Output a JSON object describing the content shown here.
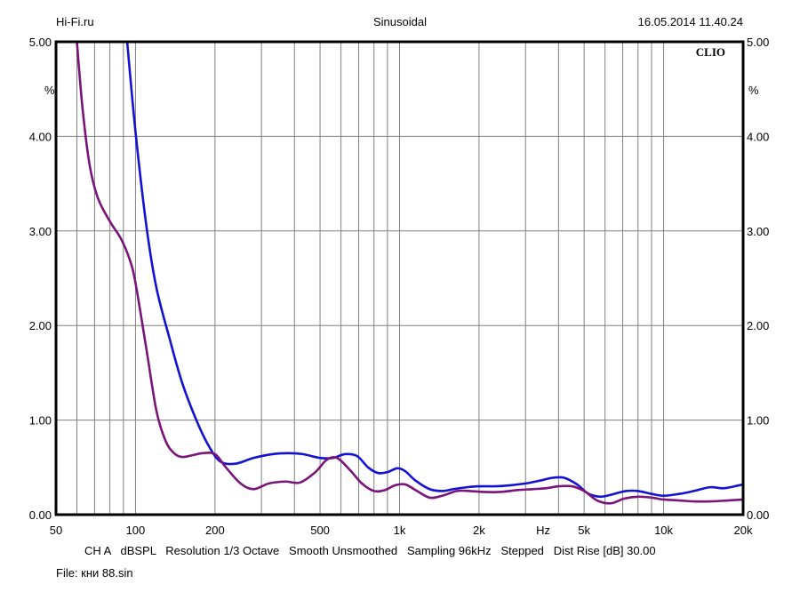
{
  "header": {
    "left": "Hi-Fi.ru",
    "center": "Sinusoidal",
    "right": "16.05.2014 11.40.24"
  },
  "brand": "CLIO",
  "footer": {
    "settings": "CH A   dBSPL   Resolution 1/3 Octave   Smooth Unsmoothed   Sampling 96kHz   Stepped   Dist Rise [dB] 30.00",
    "file": "File: кни 88.sin"
  },
  "colors": {
    "series_blue": "#1212d4",
    "series_purple": "#7a137a",
    "grid": "#808080",
    "frame": "#000000"
  },
  "chart_data": {
    "type": "line",
    "title": "Sinusoidal",
    "xlabel": "Hz",
    "ylabel": "%",
    "x_scale": "log",
    "xlim": [
      50,
      20000
    ],
    "ylim": [
      0,
      5
    ],
    "grid": true,
    "x_tick_labels": [
      {
        "value": 50,
        "label": "50"
      },
      {
        "value": 100,
        "label": "100"
      },
      {
        "value": 200,
        "label": "200"
      },
      {
        "value": 500,
        "label": "500"
      },
      {
        "value": 1000,
        "label": "1k"
      },
      {
        "value": 2000,
        "label": "2k"
      },
      {
        "value": 3500,
        "label": "Hz"
      },
      {
        "value": 5000,
        "label": "5k"
      },
      {
        "value": 10000,
        "label": "10k"
      },
      {
        "value": 20000,
        "label": "20k"
      }
    ],
    "y_tick_labels_left": [
      "0.00",
      "1.00",
      "2.00",
      "3.00",
      "4.00",
      "5.00"
    ],
    "y_tick_labels_right": [
      "0.00",
      "1.00",
      "2.00",
      "3.00",
      "4.00",
      "5.00"
    ],
    "y_ticks": [
      0,
      1,
      2,
      3,
      4,
      5
    ],
    "unit_left": "%",
    "unit_right": "%",
    "series": [
      {
        "color": "#1212d4",
        "x": [
          93,
          100,
          110,
          120,
          135,
          150,
          170,
          190,
          210,
          240,
          280,
          330,
          380,
          430,
          500,
          560,
          620,
          690,
          760,
          830,
          900,
          980,
          1050,
          1150,
          1300,
          1450,
          1600,
          1800,
          2000,
          2300,
          2600,
          3000,
          3400,
          3800,
          4200,
          4700,
          5200,
          5800,
          6500,
          7200,
          8000,
          9000,
          10000,
          11500,
          13000,
          15000,
          17000,
          20000
        ],
        "y": [
          5.0,
          4.05,
          3.05,
          2.4,
          1.85,
          1.4,
          1.0,
          0.72,
          0.56,
          0.54,
          0.6,
          0.64,
          0.65,
          0.64,
          0.6,
          0.6,
          0.64,
          0.62,
          0.5,
          0.44,
          0.45,
          0.49,
          0.46,
          0.36,
          0.27,
          0.25,
          0.27,
          0.29,
          0.3,
          0.3,
          0.31,
          0.33,
          0.36,
          0.39,
          0.39,
          0.32,
          0.22,
          0.19,
          0.22,
          0.25,
          0.25,
          0.22,
          0.2,
          0.22,
          0.25,
          0.29,
          0.28,
          0.32
        ]
      },
      {
        "color": "#7a137a",
        "x": [
          60,
          63,
          67,
          72,
          80,
          88,
          95,
          100,
          110,
          120,
          130,
          140,
          150,
          165,
          180,
          200,
          220,
          250,
          280,
          320,
          370,
          420,
          480,
          530,
          580,
          650,
          720,
          800,
          880,
          960,
          1050,
          1150,
          1300,
          1450,
          1650,
          1850,
          2100,
          2400,
          2800,
          3200,
          3600,
          4000,
          4500,
          5000,
          5600,
          6300,
          7100,
          8000,
          9000,
          10000,
          11500,
          13000,
          15000,
          17500,
          20000
        ],
        "y": [
          5.0,
          4.3,
          3.7,
          3.35,
          3.1,
          2.92,
          2.7,
          2.45,
          1.75,
          1.1,
          0.78,
          0.65,
          0.61,
          0.63,
          0.65,
          0.64,
          0.5,
          0.33,
          0.27,
          0.33,
          0.35,
          0.34,
          0.45,
          0.58,
          0.6,
          0.47,
          0.33,
          0.25,
          0.26,
          0.31,
          0.32,
          0.26,
          0.18,
          0.2,
          0.25,
          0.25,
          0.24,
          0.24,
          0.26,
          0.27,
          0.28,
          0.3,
          0.3,
          0.25,
          0.15,
          0.12,
          0.17,
          0.19,
          0.18,
          0.16,
          0.15,
          0.14,
          0.14,
          0.15,
          0.16
        ]
      }
    ]
  }
}
